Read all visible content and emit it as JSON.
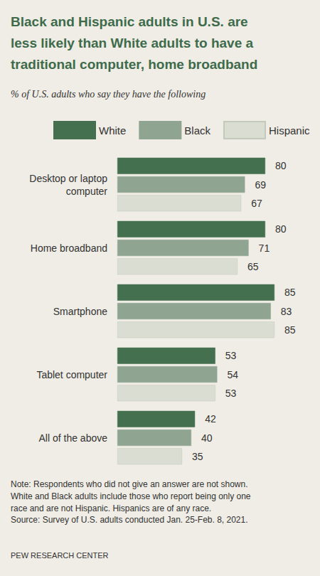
{
  "chart_data": {
    "type": "bar",
    "title": "Black and Hispanic adults in U.S. are\nless likely than White adults to have a\ntraditional computer, home broadband",
    "subtitle": "% of U.S. adults who say they have the following",
    "categories": [
      "Desktop or laptop\ncomputer",
      "Home broadband",
      "Smartphone",
      "Tablet computer",
      "All of the above"
    ],
    "series": [
      {
        "name": "White",
        "color": "#44704f",
        "values": [
          80,
          80,
          85,
          53,
          42
        ]
      },
      {
        "name": "Black",
        "color": "#8fa592",
        "values": [
          69,
          71,
          83,
          54,
          40
        ]
      },
      {
        "name": "Hispanic",
        "color": "#d9ddd2",
        "values": [
          67,
          65,
          85,
          53,
          35
        ]
      }
    ],
    "xlim": [
      0,
      100
    ],
    "orientation": "horizontal",
    "data_labels": true,
    "tick_labels": "y",
    "grid": false,
    "legend": "top",
    "note": "Note: Respondents who did not give an answer are not shown.\nWhite and Black adults include those who report being only one\nrace and are not Hispanic. Hispanics are of any race.",
    "source": "Source: Survey of U.S. adults conducted Jan. 25-Feb. 8, 2021.",
    "credit": "PEW RESEARCH CENTER"
  }
}
